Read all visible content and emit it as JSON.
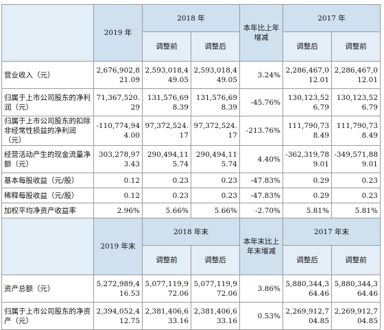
{
  "table1": {
    "h_year1": "2019 年",
    "h_year2": "2018 年",
    "h_change": "本年比上年增减",
    "h_year3": "2017 年",
    "sub_before": "调整前",
    "sub_after": "调整后",
    "rows": [
      {
        "label": "营业收入（元）",
        "c1": "2,676,902,821.09",
        "c2": "2,593,018,449.05",
        "c3": "2,593,018,449.05",
        "c4": "3.24%",
        "c5": "2,286,467,012.01",
        "c6": "2,286,467,012.01"
      },
      {
        "label": "归属于上市公司股东的净利润（元）",
        "c1": "71,367,520.29",
        "c2": "131,576,698.39",
        "c3": "131,576,698.39",
        "c4": "-45.76%",
        "c5": "130,123,526.79",
        "c6": "130,123,526.79"
      },
      {
        "label": "归属于上市公司股东的扣除非经常性损益的净利润（元）",
        "c1": "-110,774,944.00",
        "c2": "97,372,524.17",
        "c3": "97,372,524.17",
        "c4": "-213.76%",
        "c5": "111,790,738.49",
        "c6": "111,790,738.49"
      },
      {
        "label": "经营活动产生的现金流量净额（元）",
        "c1": "303,278,973.43",
        "c2": "290,494,115.74",
        "c3": "290,494,115.74",
        "c4": "4.40%",
        "c5": "-362,319,789.01",
        "c6": "-349,571,889.01"
      },
      {
        "label": "基本每股收益（元/股）",
        "c1": "0.12",
        "c2": "0.23",
        "c3": "0.23",
        "c4": "-47.83%",
        "c5": "0.29",
        "c6": "0.23"
      },
      {
        "label": "稀释每股收益（元/股）",
        "c1": "0.12",
        "c2": "0.23",
        "c3": "0.23",
        "c4": "-47.83%",
        "c5": "0.29",
        "c6": "0.23"
      },
      {
        "label": "加权平均净资产收益率",
        "c1": "2.96%",
        "c2": "5.66%",
        "c3": "5.66%",
        "c4": "-2.70%",
        "c5": "5.81%",
        "c6": "5.81%"
      }
    ]
  },
  "table2": {
    "h_year1": "2019 年末",
    "h_year2": "2018 年末",
    "h_change": "本年末比上年末增减",
    "h_year3": "2017 年末",
    "sub_before": "调整前",
    "sub_after": "调整后",
    "rows": [
      {
        "label": "资产总额（元）",
        "c1": "5,272,989,416.53",
        "c2": "5,077,119,972.06",
        "c3": "5,077,119,972.06",
        "c4": "3.86%",
        "c5": "5,880,344,364.46",
        "c6": "5,880,344,364.46"
      },
      {
        "label": "归属于上市公司股东的净资产（元）",
        "c1": "2,394,052,412.75",
        "c2": "2,381,406,633.16",
        "c3": "2,381,406,633.16",
        "c4": "0.53%",
        "c5": "2,269,912,704.85",
        "c6": "2,269,912,704.85"
      }
    ]
  }
}
